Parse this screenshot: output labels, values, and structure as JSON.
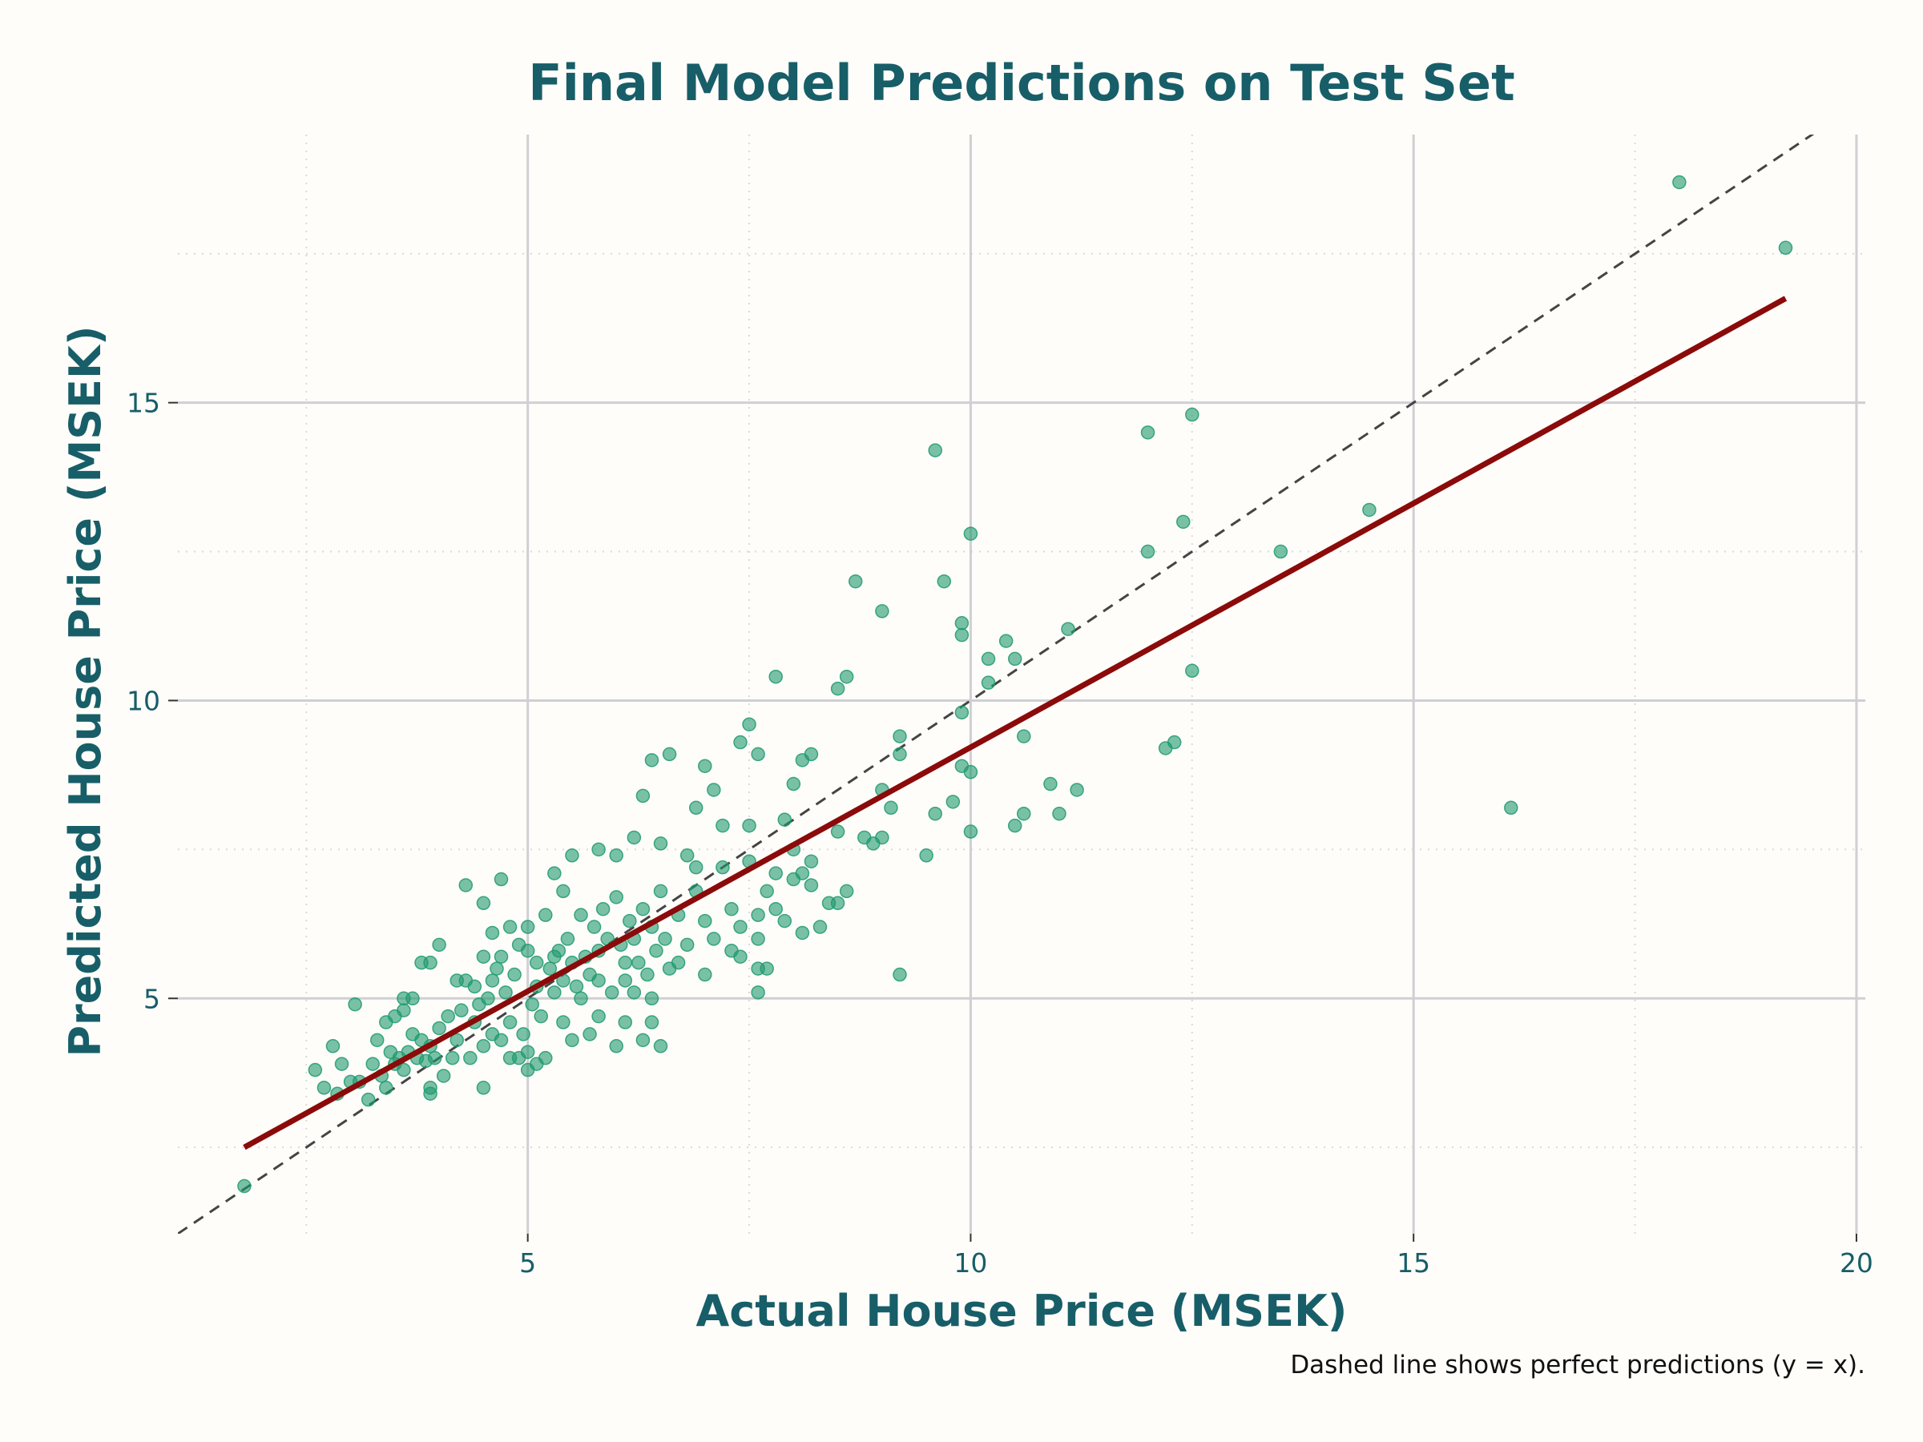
{
  "colors": {
    "background": "#fefdfa",
    "title": "#175e68",
    "points": "#1f9a6e",
    "fit_line": "#8b0a0a",
    "identity_line": "#444444",
    "grid_major": "#cfcfd4",
    "grid_minor": "#d9d9de"
  },
  "chart_data": {
    "type": "scatter",
    "title": "Final Model Predictions on Test Set",
    "xlabel": "Actual House Price (MSEK)",
    "ylabel": "Predicted House Price (MSEK)",
    "caption": "Dashed line shows perfect predictions (y = x).",
    "xlim": [
      1.05,
      20.1
    ],
    "ylim": [
      1.05,
      19.5
    ],
    "xticks": [
      5,
      10,
      15,
      20
    ],
    "yticks": [
      5,
      10,
      15
    ],
    "xtick_labels": [
      "5",
      "10",
      "15",
      "20"
    ],
    "ytick_labels": [
      "5",
      "10",
      "15"
    ],
    "grid": true,
    "minor_grid": true,
    "identity_line": {
      "style": "dashed",
      "x": [
        1.05,
        20.1
      ],
      "y": [
        1.05,
        20.1
      ]
    },
    "fit_line": {
      "x": [
        1.8,
        19.2
      ],
      "y": [
        2.5,
        16.75
      ]
    },
    "points": [
      [
        1.8,
        1.85
      ],
      [
        2.7,
        3.5
      ],
      [
        2.8,
        4.2
      ],
      [
        2.85,
        3.4
      ],
      [
        2.6,
        3.8
      ],
      [
        2.9,
        3.9
      ],
      [
        3.0,
        3.6
      ],
      [
        3.1,
        3.6
      ],
      [
        3.05,
        4.9
      ],
      [
        3.2,
        3.3
      ],
      [
        3.25,
        3.9
      ],
      [
        3.3,
        4.3
      ],
      [
        3.35,
        3.7
      ],
      [
        3.4,
        3.5
      ],
      [
        3.45,
        4.1
      ],
      [
        3.5,
        3.9
      ],
      [
        3.55,
        4.0
      ],
      [
        3.6,
        3.8
      ],
      [
        3.65,
        4.1
      ],
      [
        3.7,
        4.4
      ],
      [
        3.75,
        4.0
      ],
      [
        3.8,
        4.3
      ],
      [
        3.85,
        3.95
      ],
      [
        3.9,
        4.2
      ],
      [
        3.95,
        4.0
      ],
      [
        4.0,
        4.5
      ],
      [
        4.05,
        3.7
      ],
      [
        4.1,
        4.7
      ],
      [
        4.15,
        4.0
      ],
      [
        4.2,
        4.3
      ],
      [
        4.25,
        4.8
      ],
      [
        4.3,
        5.3
      ],
      [
        4.35,
        4.0
      ],
      [
        4.4,
        4.6
      ],
      [
        4.45,
        4.9
      ],
      [
        4.5,
        4.2
      ],
      [
        4.55,
        5.0
      ],
      [
        4.6,
        4.4
      ],
      [
        4.65,
        5.5
      ],
      [
        4.7,
        4.3
      ],
      [
        4.75,
        5.1
      ],
      [
        4.8,
        4.6
      ],
      [
        4.85,
        5.4
      ],
      [
        4.9,
        5.9
      ],
      [
        4.95,
        4.4
      ],
      [
        5.0,
        5.8
      ],
      [
        5.05,
        4.9
      ],
      [
        5.1,
        5.2
      ],
      [
        5.15,
        4.7
      ],
      [
        5.2,
        6.4
      ],
      [
        5.25,
        5.5
      ],
      [
        5.3,
        5.1
      ],
      [
        5.35,
        5.8
      ],
      [
        5.4,
        5.3
      ],
      [
        5.45,
        6.0
      ],
      [
        5.5,
        5.6
      ],
      [
        5.55,
        5.2
      ],
      [
        5.6,
        6.4
      ],
      [
        5.65,
        5.7
      ],
      [
        5.7,
        5.4
      ],
      [
        5.75,
        6.2
      ],
      [
        5.8,
        5.8
      ],
      [
        5.85,
        6.5
      ],
      [
        5.9,
        6.0
      ],
      [
        5.95,
        5.1
      ],
      [
        6.0,
        6.7
      ],
      [
        6.05,
        5.9
      ],
      [
        6.1,
        5.3
      ],
      [
        6.15,
        6.3
      ],
      [
        6.2,
        6.0
      ],
      [
        6.25,
        5.6
      ],
      [
        6.3,
        6.5
      ],
      [
        6.35,
        5.4
      ],
      [
        6.4,
        6.2
      ],
      [
        6.45,
        5.8
      ],
      [
        6.5,
        6.8
      ],
      [
        6.55,
        6.0
      ],
      [
        6.6,
        5.5
      ],
      [
        6.7,
        6.4
      ],
      [
        6.8,
        5.9
      ],
      [
        6.9,
        6.8
      ],
      [
        7.0,
        6.3
      ],
      [
        7.1,
        6.0
      ],
      [
        7.2,
        7.2
      ],
      [
        7.3,
        6.5
      ],
      [
        7.4,
        6.2
      ],
      [
        7.5,
        7.3
      ],
      [
        7.6,
        6.0
      ],
      [
        7.7,
        6.8
      ],
      [
        7.8,
        7.1
      ],
      [
        7.9,
        6.3
      ],
      [
        8.0,
        7.5
      ],
      [
        8.1,
        6.1
      ],
      [
        8.2,
        6.9
      ],
      [
        8.3,
        6.2
      ],
      [
        8.4,
        6.6
      ],
      [
        8.5,
        6.6
      ],
      [
        8.6,
        6.8
      ],
      [
        8.0,
        8.6
      ],
      [
        8.1,
        9.0
      ],
      [
        8.2,
        9.1
      ],
      [
        7.5,
        9.6
      ],
      [
        7.4,
        9.3
      ],
      [
        7.6,
        9.1
      ],
      [
        7.0,
        8.9
      ],
      [
        7.1,
        8.5
      ],
      [
        6.6,
        9.1
      ],
      [
        6.4,
        9.0
      ],
      [
        6.3,
        8.4
      ],
      [
        6.9,
        8.2
      ],
      [
        7.2,
        7.9
      ],
      [
        7.5,
        7.9
      ],
      [
        7.9,
        8.0
      ],
      [
        8.5,
        7.8
      ],
      [
        8.7,
        12.0
      ],
      [
        9.0,
        11.5
      ],
      [
        8.6,
        10.4
      ],
      [
        8.5,
        10.2
      ],
      [
        7.8,
        10.4
      ],
      [
        9.2,
        9.4
      ],
      [
        9.2,
        9.1
      ],
      [
        9.0,
        8.5
      ],
      [
        9.1,
        8.2
      ],
      [
        8.9,
        7.6
      ],
      [
        9.0,
        7.7
      ],
      [
        8.8,
        7.7
      ],
      [
        9.5,
        7.4
      ],
      [
        9.6,
        8.1
      ],
      [
        9.8,
        8.3
      ],
      [
        9.9,
        8.9
      ],
      [
        10.0,
        8.8
      ],
      [
        10.0,
        7.8
      ],
      [
        9.9,
        9.8
      ],
      [
        10.2,
        10.3
      ],
      [
        10.2,
        10.7
      ],
      [
        9.9,
        11.1
      ],
      [
        9.9,
        11.3
      ],
      [
        9.7,
        12.0
      ],
      [
        9.6,
        14.2
      ],
      [
        10.0,
        12.8
      ],
      [
        10.4,
        11.0
      ],
      [
        10.5,
        10.7
      ],
      [
        11.1,
        11.2
      ],
      [
        10.6,
        9.4
      ],
      [
        10.6,
        8.1
      ],
      [
        10.5,
        7.9
      ],
      [
        11.0,
        8.1
      ],
      [
        10.9,
        8.6
      ],
      [
        11.2,
        8.5
      ],
      [
        9.2,
        5.4
      ],
      [
        7.6,
        5.1
      ],
      [
        7.7,
        5.5
      ],
      [
        7.6,
        5.5
      ],
      [
        7.4,
        5.7
      ],
      [
        12.0,
        14.5
      ],
      [
        12.5,
        14.8
      ],
      [
        12.4,
        13.0
      ],
      [
        12.0,
        12.5
      ],
      [
        12.5,
        10.5
      ],
      [
        12.2,
        9.2
      ],
      [
        12.3,
        9.3
      ],
      [
        13.5,
        12.5
      ],
      [
        14.5,
        13.2
      ],
      [
        16.1,
        8.2
      ],
      [
        18.0,
        18.7
      ],
      [
        19.2,
        17.6
      ],
      [
        3.9,
        3.4
      ],
      [
        3.9,
        3.5
      ],
      [
        4.5,
        3.5
      ],
      [
        4.3,
        6.9
      ],
      [
        4.7,
        7.0
      ],
      [
        4.6,
        6.1
      ],
      [
        4.5,
        6.6
      ],
      [
        4.0,
        5.9
      ],
      [
        3.9,
        5.6
      ],
      [
        3.8,
        5.6
      ],
      [
        3.7,
        5.0
      ],
      [
        3.6,
        5.0
      ],
      [
        3.6,
        4.8
      ],
      [
        3.5,
        4.7
      ],
      [
        3.4,
        4.6
      ],
      [
        5.0,
        3.8
      ],
      [
        5.0,
        4.1
      ],
      [
        4.9,
        4.0
      ],
      [
        4.8,
        4.0
      ],
      [
        5.1,
        3.9
      ],
      [
        5.2,
        4.0
      ],
      [
        5.4,
        4.6
      ],
      [
        5.5,
        4.3
      ],
      [
        5.7,
        4.4
      ],
      [
        5.8,
        4.7
      ],
      [
        6.0,
        4.2
      ],
      [
        6.1,
        4.6
      ],
      [
        6.3,
        4.3
      ],
      [
        6.5,
        4.2
      ],
      [
        6.4,
        4.6
      ],
      [
        5.4,
        6.8
      ],
      [
        5.3,
        7.1
      ],
      [
        5.5,
        7.4
      ],
      [
        5.8,
        7.5
      ],
      [
        6.0,
        7.4
      ],
      [
        6.2,
        7.7
      ],
      [
        6.5,
        7.6
      ],
      [
        6.8,
        7.4
      ],
      [
        6.9,
        7.2
      ],
      [
        5.0,
        6.2
      ],
      [
        4.8,
        6.2
      ],
      [
        4.2,
        5.3
      ],
      [
        4.4,
        5.2
      ],
      [
        4.6,
        5.3
      ],
      [
        4.7,
        5.7
      ],
      [
        4.5,
        5.7
      ],
      [
        5.1,
        5.6
      ],
      [
        5.3,
        5.7
      ],
      [
        5.6,
        5.0
      ],
      [
        5.8,
        5.3
      ],
      [
        6.1,
        5.6
      ],
      [
        6.2,
        5.1
      ],
      [
        6.4,
        5.0
      ],
      [
        6.7,
        5.6
      ],
      [
        7.0,
        5.4
      ],
      [
        7.3,
        5.8
      ],
      [
        7.6,
        6.4
      ],
      [
        7.8,
        6.5
      ],
      [
        8.0,
        7.0
      ],
      [
        8.2,
        7.3
      ],
      [
        8.1,
        7.1
      ]
    ]
  }
}
